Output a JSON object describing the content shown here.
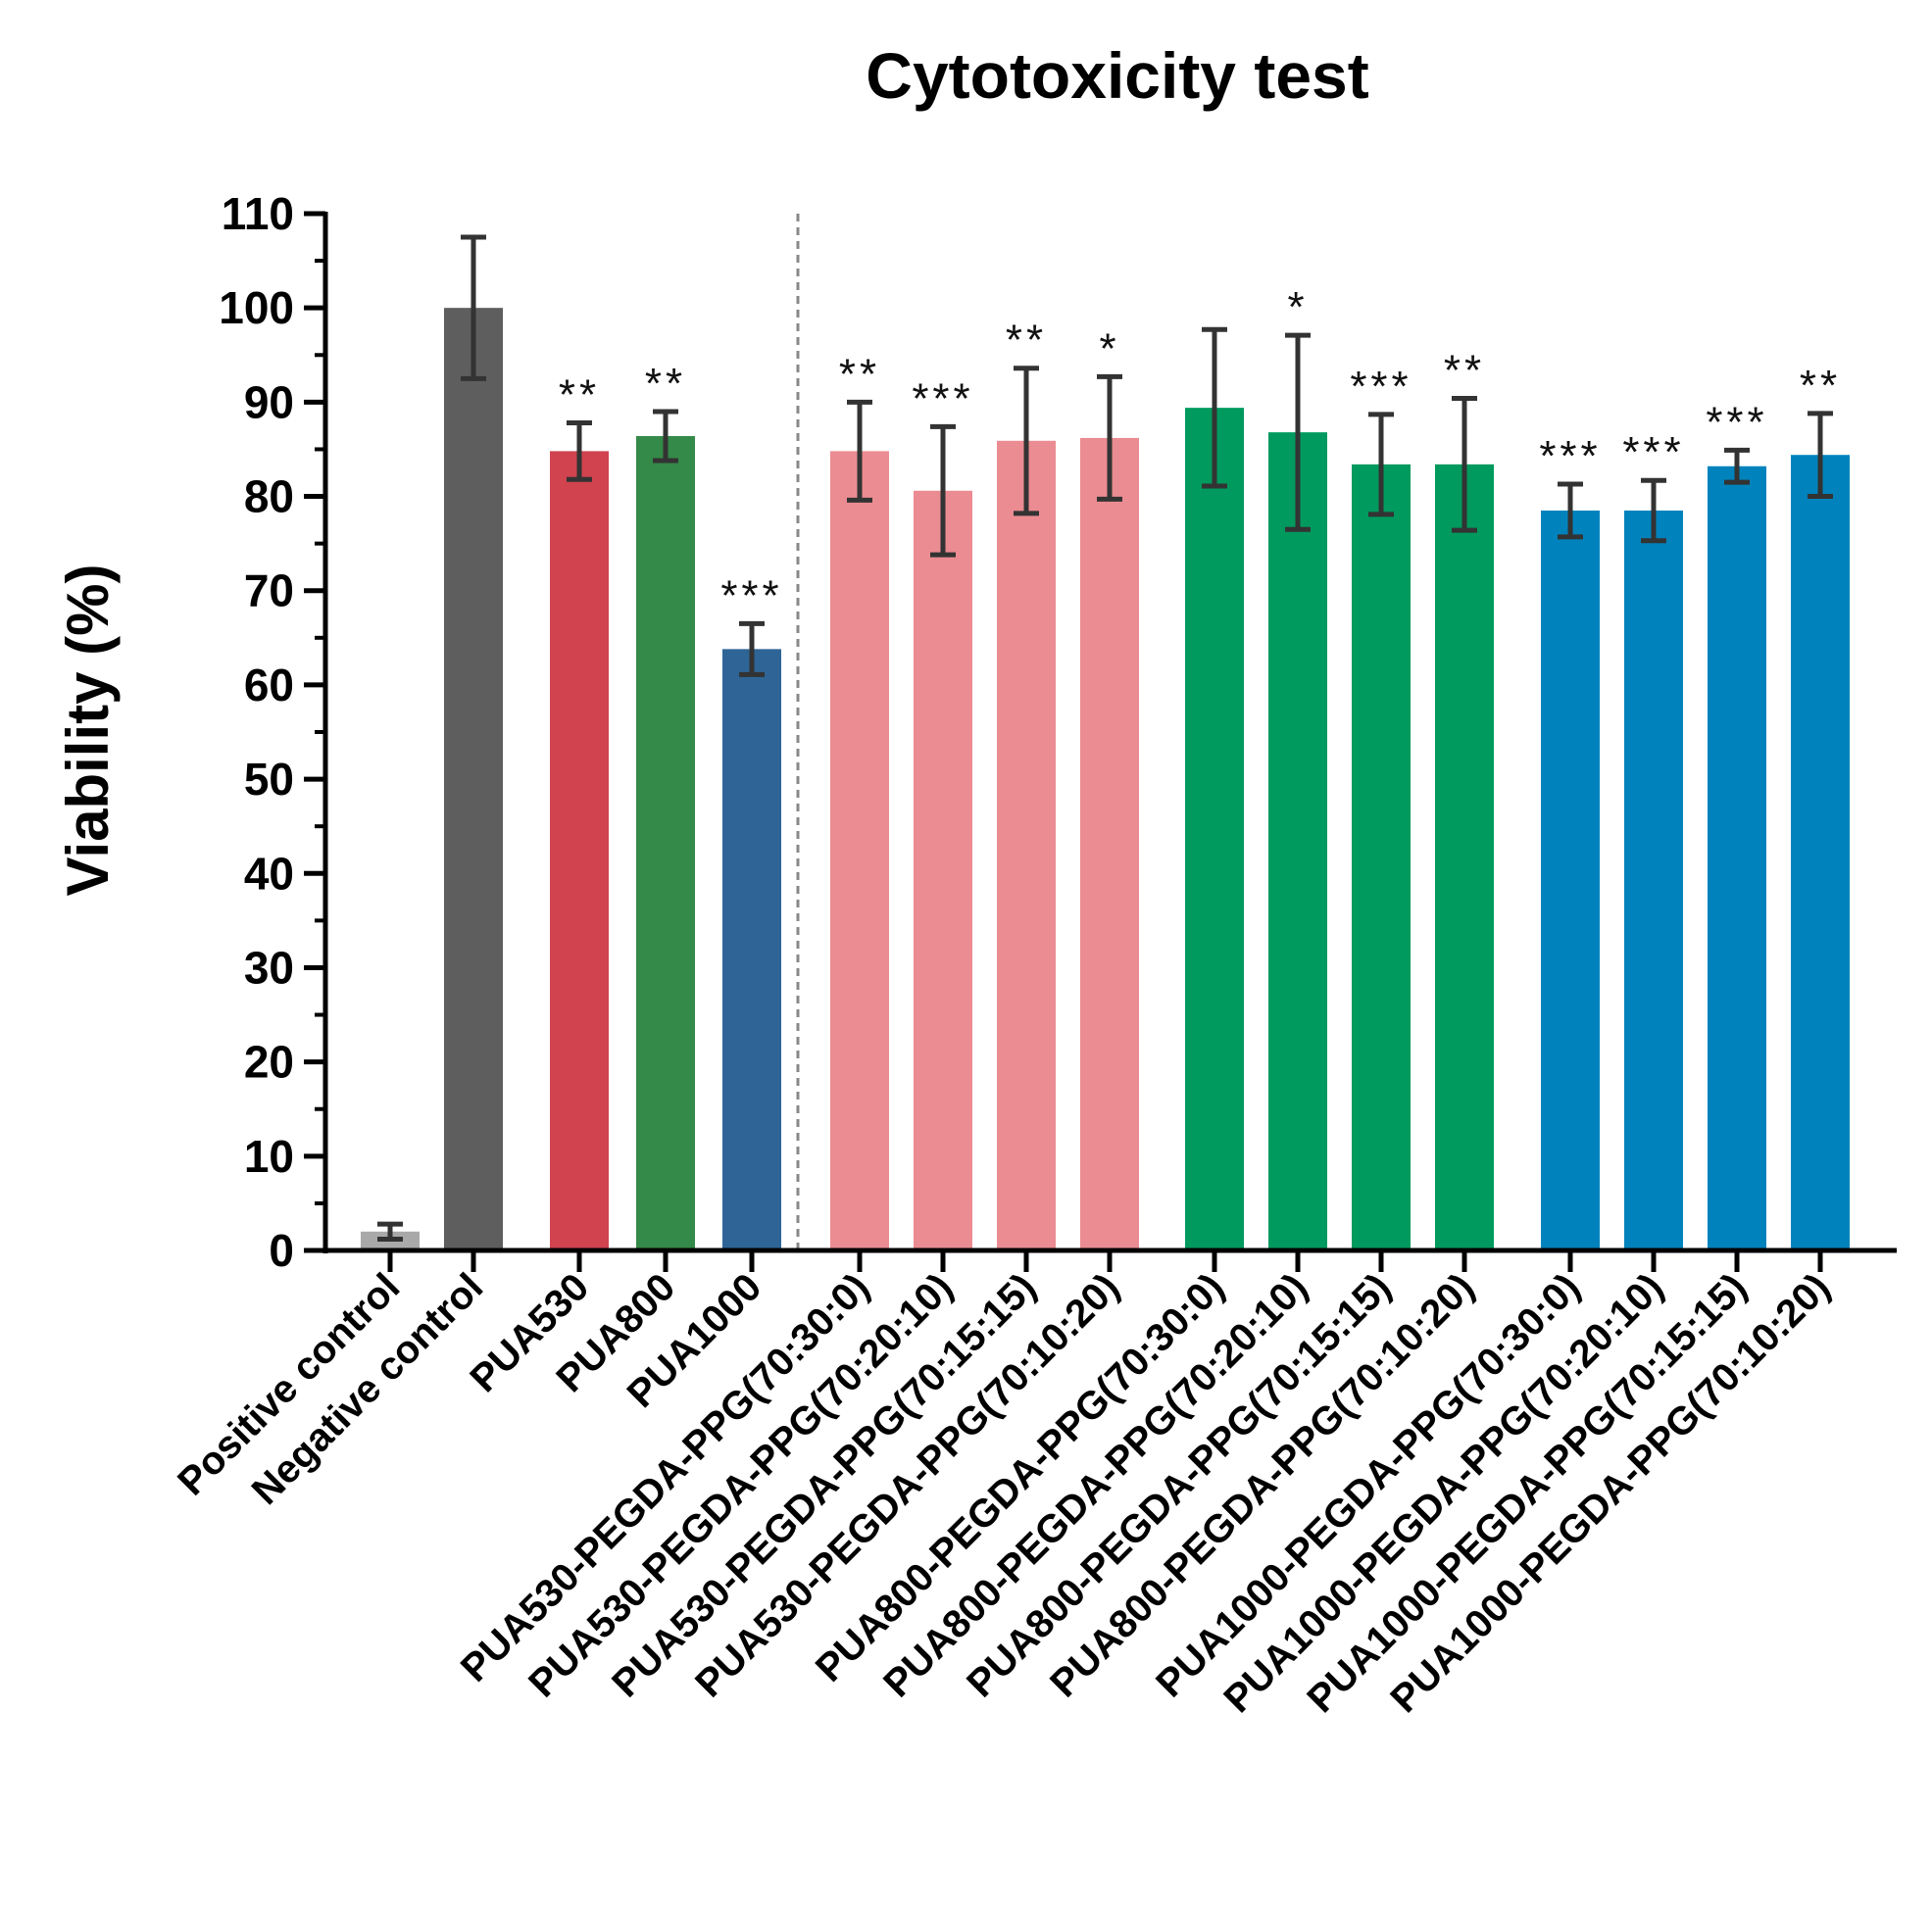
{
  "chart_data": {
    "type": "bar",
    "title": "Cytotoxicity test",
    "xlabel": "",
    "ylabel": "Viability (%)",
    "ylim": [
      0,
      110
    ],
    "yticks": [
      0,
      10,
      20,
      30,
      40,
      50,
      60,
      70,
      80,
      90,
      100,
      110
    ],
    "grid": false,
    "legend": "none",
    "group_divider_after_index": 4,
    "categories": [
      "Positive control",
      "Negative control",
      "PUA530",
      "PUA800",
      "PUA1000",
      "PUA530-PEGDA-PPG(70:30:0)",
      "PUA530-PEGDA-PPG(70:20:10)",
      "PUA530-PEGDA-PPG(70:15:15)",
      "PUA530-PEGDA-PPG(70:10:20)",
      "PUA800-PEGDA-PPG(70:30:0)",
      "PUA800-PEGDA-PPG(70:20:10)",
      "PUA800-PEGDA-PPG(70:15:15)",
      "PUA800-PEGDA-PPG(70:10:20)",
      "PUA1000-PEGDA-PPG(70:30:0)",
      "PUA1000-PEGDA-PPG(70:20:10)",
      "PUA1000-PEGDA-PPG(70:15:15)",
      "PUA1000-PEGDA-PPG(70:10:20)"
    ],
    "values": [
      2,
      100,
      84.8,
      86.4,
      63.8,
      84.8,
      80.6,
      85.9,
      86.2,
      89.4,
      86.8,
      83.4,
      83.4,
      78.5,
      78.5,
      83.2,
      84.4
    ],
    "errors": [
      0.8,
      7.5,
      3,
      2.6,
      2.7,
      5.2,
      6.8,
      7.7,
      6.5,
      8.3,
      10.3,
      5.3,
      7,
      2.8,
      3.2,
      1.7,
      4.4
    ],
    "significance": [
      "",
      "",
      "**",
      "**",
      "***",
      "**",
      "***",
      "**",
      "*",
      "",
      "*",
      "***",
      "**",
      "***",
      "***",
      "***",
      "**"
    ],
    "colors": [
      "#a9a9a9",
      "#5e5e5e",
      "#d0434f",
      "#348a48",
      "#2e6596",
      "#eb8c92",
      "#eb8c92",
      "#eb8c92",
      "#eb8c92",
      "#009a5e",
      "#009a5e",
      "#009a5e",
      "#009a5e",
      "#0083bd",
      "#0083bd",
      "#0083bd",
      "#0083bd"
    ]
  }
}
